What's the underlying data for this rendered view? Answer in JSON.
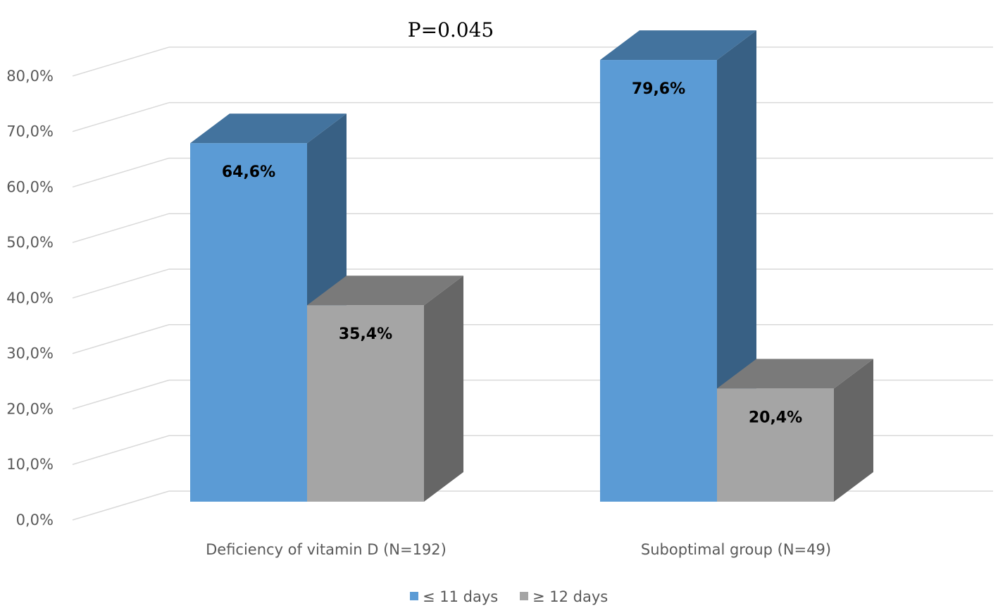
{
  "chart_data": {
    "type": "bar",
    "title": "",
    "annotation": "P=0.045",
    "xlabel": "",
    "ylabel": "",
    "categories": [
      "Deficiency of vitamin D (N=192)",
      "Suboptimal group (N=49)"
    ],
    "series": [
      {
        "name": "≤ 11 days",
        "values": [
          64.6,
          79.6
        ],
        "labels": [
          "64,6%",
          "79,6%"
        ],
        "color": "#5b9bd5"
      },
      {
        "name": "≥ 12 days",
        "values": [
          35.4,
          20.4
        ],
        "labels": [
          "35,4%",
          "20,4%"
        ],
        "color": "#a5a5a5"
      }
    ],
    "ylim": [
      0,
      80
    ],
    "yticks": [
      0,
      10,
      20,
      30,
      40,
      50,
      60,
      70,
      80
    ],
    "ytick_labels": [
      "0,0%",
      "10,0%",
      "20,0%",
      "30,0%",
      "40,0%",
      "50,0%",
      "60,0%",
      "70,0%",
      "80,0%"
    ],
    "grid": true,
    "legend_position": "bottom",
    "style": "3d-column"
  }
}
